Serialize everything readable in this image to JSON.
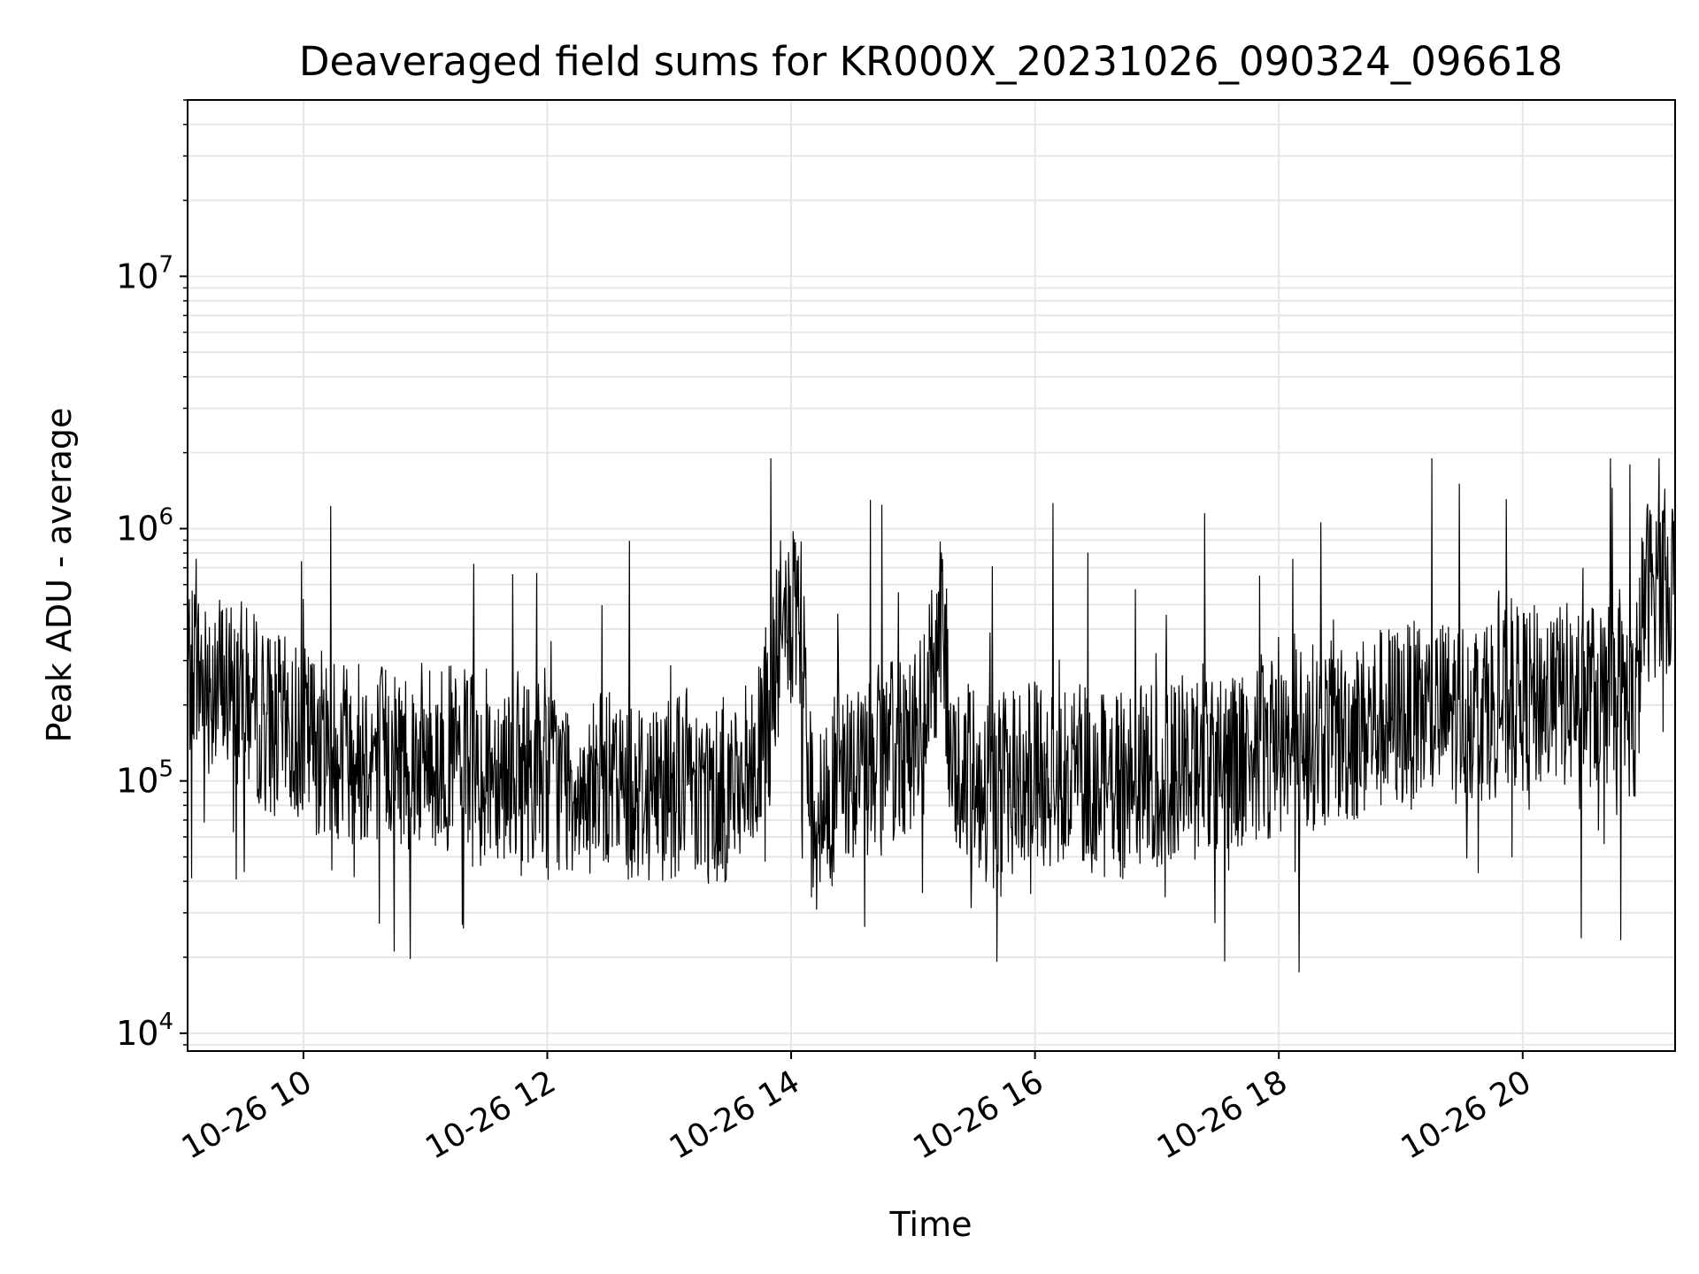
{
  "chart_data": {
    "type": "line",
    "title": "Deaveraged field sums for KR000X_20231026_090324_096618",
    "xlabel": "Time",
    "ylabel": "Peak ADU - average",
    "yscale": "log",
    "xlim": [
      "2023-10-26 09:03",
      "2023-10-26 21:15"
    ],
    "ylim": [
      8500,
      50000000
    ],
    "grid": true,
    "line_color": "#000000",
    "grid_color": "#e6e6e6",
    "x_ticks": [
      {
        "t": "2023-10-26 10:00",
        "label": "10-26 10"
      },
      {
        "t": "2023-10-26 12:00",
        "label": "10-26 12"
      },
      {
        "t": "2023-10-26 14:00",
        "label": "10-26 14"
      },
      {
        "t": "2023-10-26 16:00",
        "label": "10-26 16"
      },
      {
        "t": "2023-10-26 18:00",
        "label": "10-26 18"
      },
      {
        "t": "2023-10-26 20:00",
        "label": "10-26 20"
      }
    ],
    "y_ticks": [
      {
        "value": 10000,
        "base": "10",
        "exp": "4"
      },
      {
        "value": 100000,
        "base": "10",
        "exp": "5"
      },
      {
        "value": 1000000,
        "base": "10",
        "exp": "6"
      },
      {
        "value": 10000000,
        "base": "10",
        "exp": "7"
      }
    ],
    "series": [
      {
        "x": [
          "2023-10-26 09:03",
          "2023-10-26 09:10",
          "2023-10-26 09:15",
          "2023-10-26 09:20",
          "2023-10-26 09:25",
          "2023-10-26 09:30",
          "2023-10-26 09:35",
          "2023-10-26 09:38",
          "2023-10-26 09:40",
          "2023-10-26 09:45",
          "2023-10-26 09:50",
          "2023-10-26 09:55",
          "2023-10-26 10:00",
          "2023-10-26 10:05",
          "2023-10-26 10:15",
          "2023-10-26 10:20",
          "2023-10-26 10:30",
          "2023-10-26 10:45",
          "2023-10-26 11:00",
          "2023-10-26 11:15",
          "2023-10-26 11:20",
          "2023-10-26 11:30",
          "2023-10-26 11:45",
          "2023-10-26 11:55",
          "2023-10-26 12:00",
          "2023-10-26 12:05",
          "2023-10-26 12:15",
          "2023-10-26 12:25",
          "2023-10-26 12:30",
          "2023-10-26 12:45",
          "2023-10-26 12:50",
          "2023-10-26 13:00",
          "2023-10-26 13:05",
          "2023-10-26 13:10",
          "2023-10-26 13:12",
          "2023-10-26 13:15",
          "2023-10-26 13:20",
          "2023-10-26 13:25",
          "2023-10-26 13:30",
          "2023-10-26 13:35",
          "2023-10-26 13:40",
          "2023-10-26 13:45",
          "2023-10-26 13:50",
          "2023-10-26 13:55",
          "2023-10-26 14:00",
          "2023-10-26 14:05",
          "2023-10-26 14:10",
          "2023-10-26 14:15",
          "2023-10-26 14:20",
          "2023-10-26 14:30",
          "2023-10-26 14:40",
          "2023-10-26 14:50",
          "2023-10-26 14:55",
          "2023-10-26 15:00",
          "2023-10-26 15:05",
          "2023-10-26 15:10",
          "2023-10-26 15:15",
          "2023-10-26 15:18",
          "2023-10-26 15:25",
          "2023-10-26 15:35",
          "2023-10-26 15:45",
          "2023-10-26 16:00",
          "2023-10-26 16:15",
          "2023-10-26 16:25",
          "2023-10-26 16:30",
          "2023-10-26 16:35",
          "2023-10-26 16:45",
          "2023-10-26 17:00",
          "2023-10-26 17:10",
          "2023-10-26 17:20",
          "2023-10-26 17:30",
          "2023-10-26 17:45",
          "2023-10-26 18:00",
          "2023-10-26 18:15",
          "2023-10-26 18:30",
          "2023-10-26 18:40",
          "2023-10-26 18:45",
          "2023-10-26 18:50",
          "2023-10-26 19:00",
          "2023-10-26 19:15",
          "2023-10-26 19:30",
          "2023-10-26 19:45",
          "2023-10-26 19:50",
          "2023-10-26 20:00",
          "2023-10-26 20:15",
          "2023-10-26 20:30",
          "2023-10-26 20:45",
          "2023-10-26 20:52",
          "2023-10-26 20:55",
          "2023-10-26 21:00",
          "2023-10-26 21:05",
          "2023-10-26 21:10",
          "2023-10-26 21:15"
        ],
        "y": [
          280000,
          260000,
          250000,
          240000,
          230000,
          220000,
          200000,
          190000,
          180000,
          170000,
          160000,
          155000,
          150000,
          145000,
          140000,
          135000,
          130000,
          128000,
          125000,
          122000,
          120000,
          118000,
          115000,
          110000,
          105000,
          100000,
          98000,
          96000,
          95000,
          94000,
          93000,
          95000,
          100000,
          105000,
          110000,
          95000,
          90000,
          90000,
          95000,
          100000,
          105000,
          120000,
          200000,
          400000,
          420000,
          380000,
          80000,
          70000,
          90000,
          110000,
          120000,
          130000,
          140000,
          150000,
          160000,
          300000,
          420000,
          110000,
          105000,
          100000,
          100000,
          105000,
          110000,
          105000,
          100000,
          95000,
          100000,
          105000,
          110000,
          115000,
          120000,
          130000,
          140000,
          150000,
          155000,
          160000,
          170000,
          175000,
          180000,
          185000,
          190000,
          200000,
          205000,
          210000,
          215000,
          220000,
          220000,
          200000,
          180000,
          560000,
          600000,
          620000,
          640000
        ]
      }
    ]
  }
}
